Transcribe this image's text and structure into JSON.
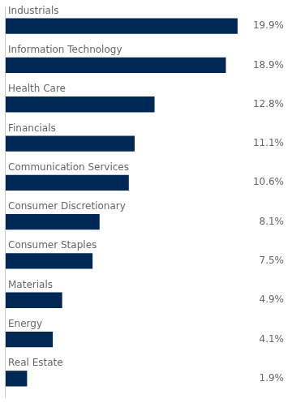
{
  "chart_data": {
    "type": "bar",
    "orientation": "horizontal",
    "categories": [
      "Industrials",
      "Information Technology",
      "Health Care",
      "Financials",
      "Communication Services",
      "Consumer Discretionary",
      "Consumer Staples",
      "Materials",
      "Energy",
      "Real Estate"
    ],
    "values": [
      19.9,
      18.9,
      12.8,
      11.1,
      10.6,
      8.1,
      7.5,
      4.9,
      4.1,
      1.9
    ],
    "value_labels": [
      "19.9%",
      "18.9%",
      "12.8%",
      "11.1%",
      "10.6%",
      "8.1%",
      "7.5%",
      "4.9%",
      "4.1%",
      "1.9%"
    ],
    "data_labels": true,
    "color": "#002855",
    "xlim": [
      0,
      24
    ],
    "grid": false,
    "tick_labels": false
  }
}
